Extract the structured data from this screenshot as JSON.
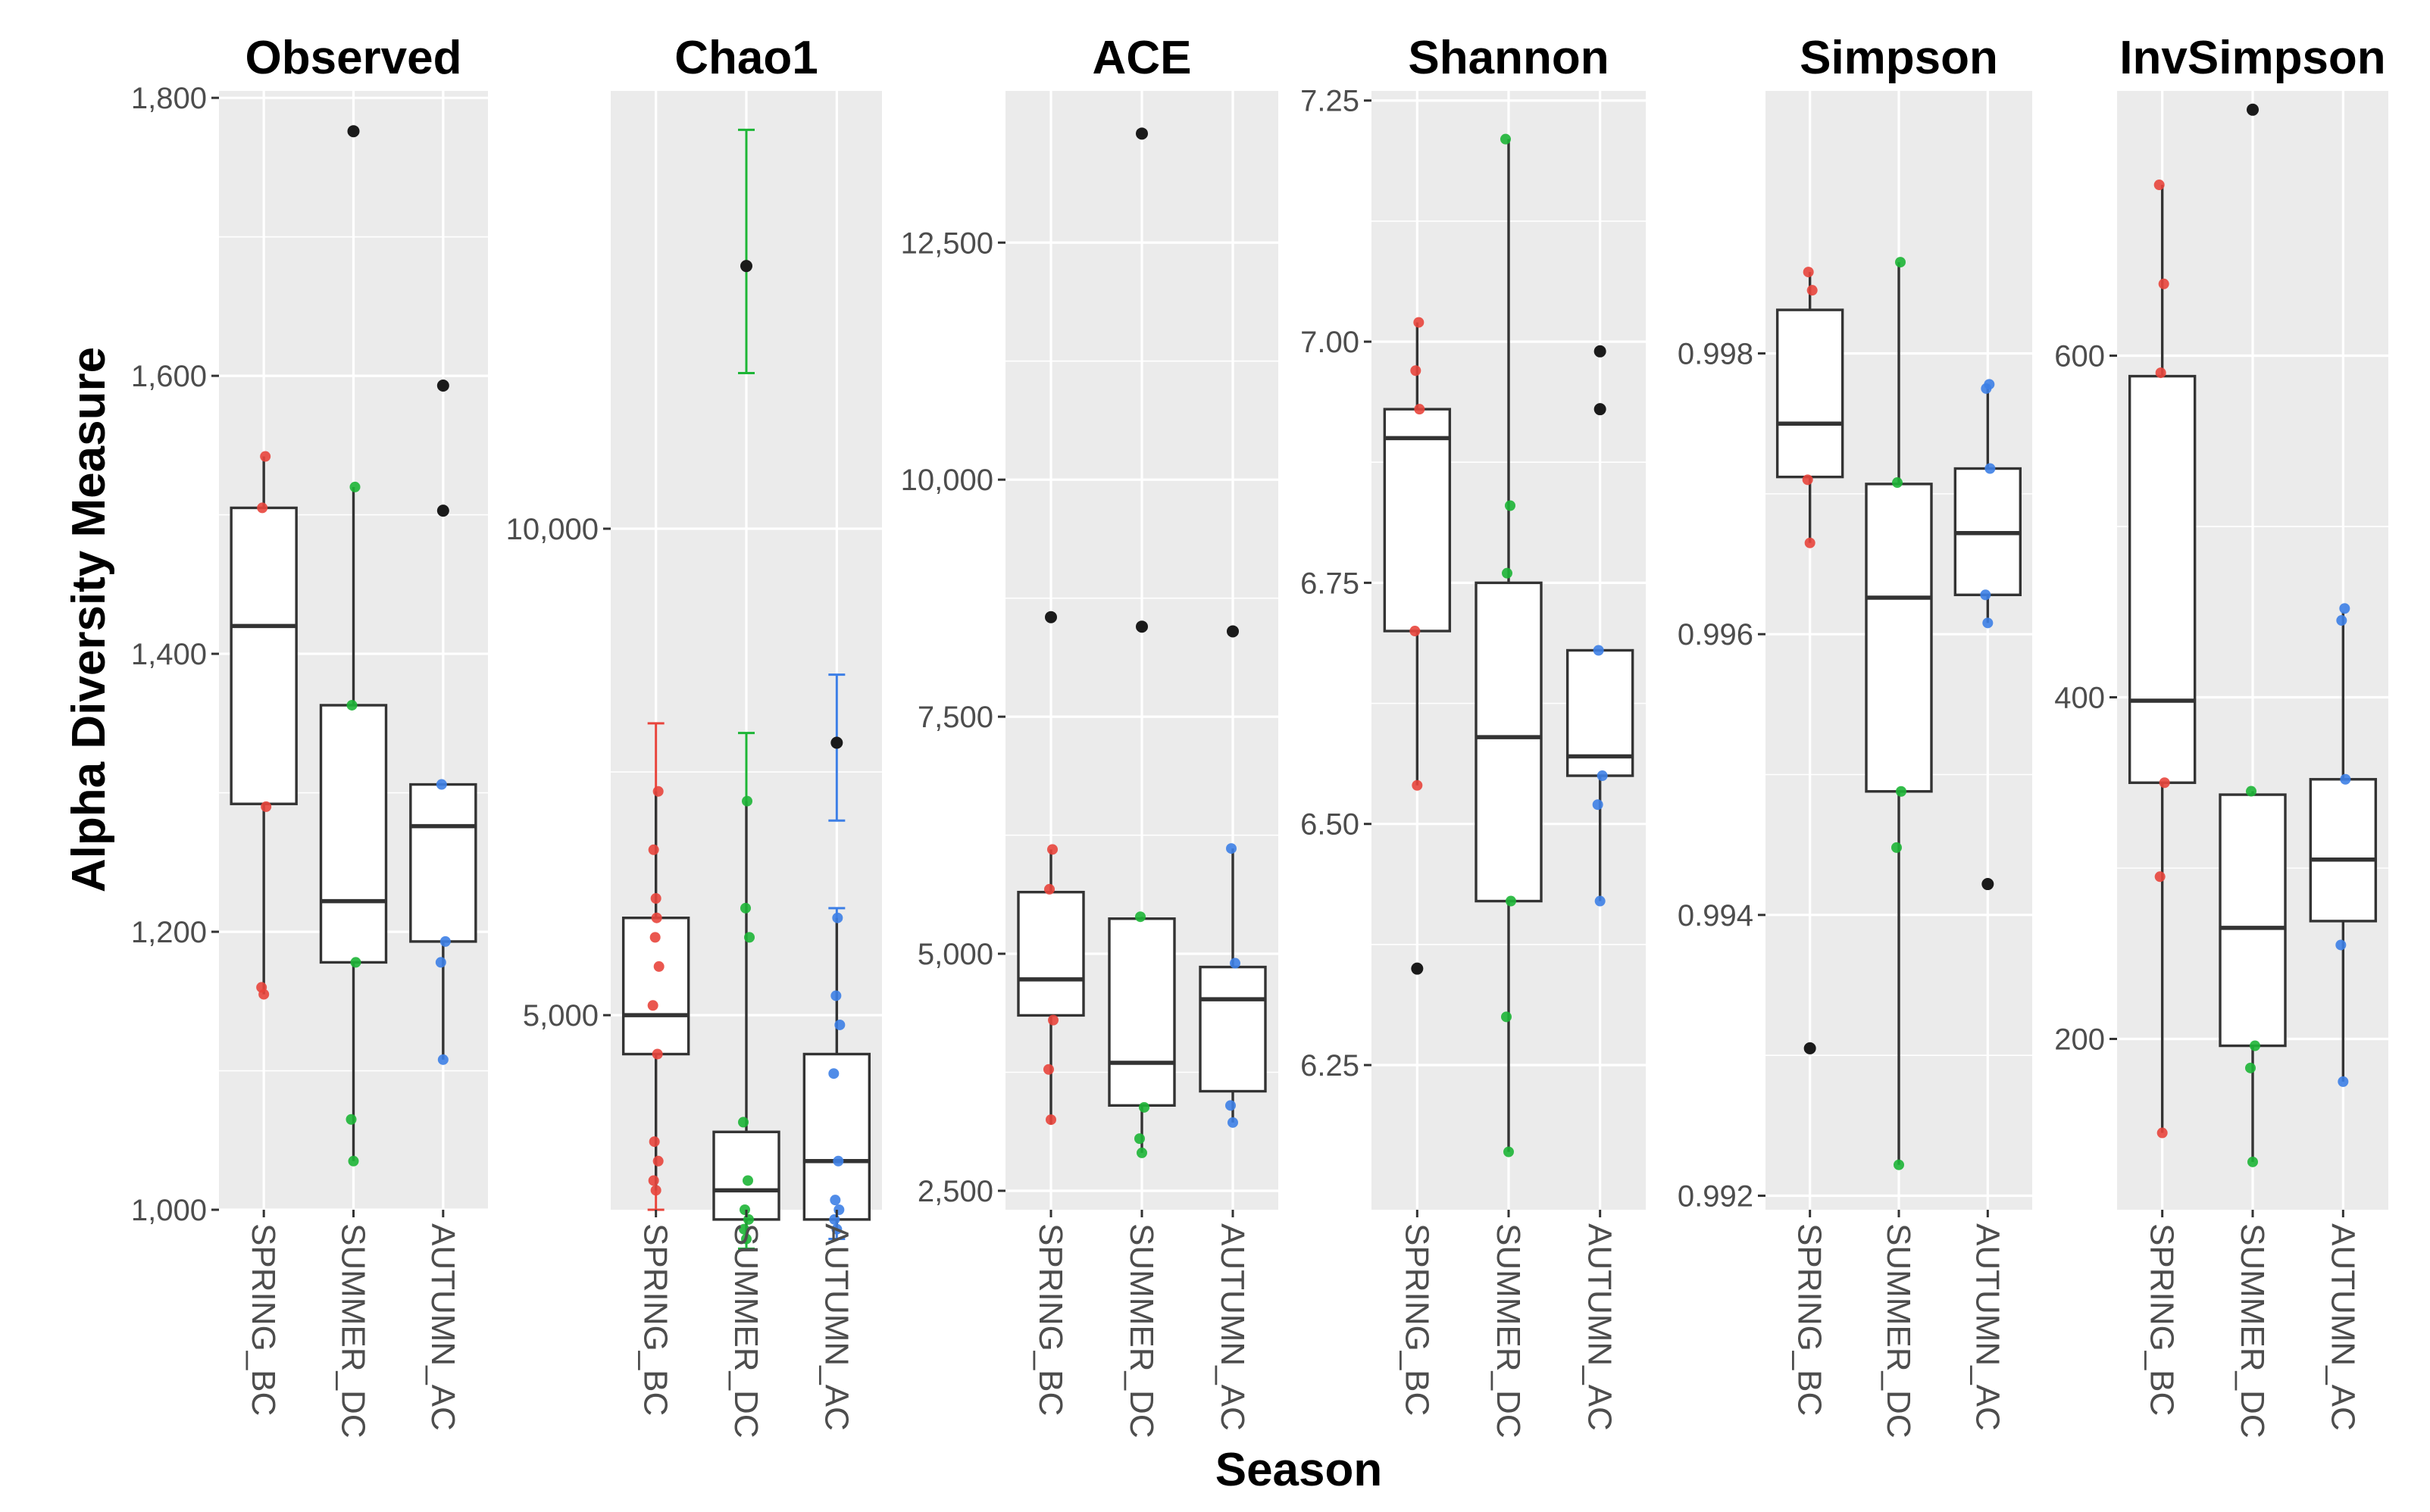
{
  "chart_data": {
    "type": "boxplot",
    "x_title": "Season",
    "y_title": "Alpha Diversity Measure",
    "categories": [
      "SPRING_BC",
      "SUMMER_DC",
      "AUTUMN_AC"
    ],
    "category_colors": [
      "#e8453c",
      "#1db536",
      "#3d7fe6"
    ],
    "outlier_color": "#1a1a1a",
    "panels": [
      {
        "title": "Observed",
        "ylim": [
          1000,
          1805
        ],
        "ticks": [
          1000,
          1200,
          1400,
          1600,
          1800
        ],
        "tick_labels": [
          "1,000",
          "1,200",
          "1,400",
          "1,600",
          "1,800"
        ],
        "boxes": [
          {
            "category": "SPRING_BC",
            "whisker_low": 1155,
            "q1": 1292,
            "median": 1420,
            "q3": 1505,
            "whisker_high": 1542,
            "outliers": [],
            "points": [
              1155,
              1160,
              1290,
              1505,
              1542
            ]
          },
          {
            "category": "SUMMER_DC",
            "whisker_low": 1035,
            "q1": 1178,
            "median": 1222,
            "q3": 1363,
            "whisker_high": 1520,
            "outliers": [
              1776
            ],
            "points": [
              1035,
              1065,
              1178,
              1363,
              1520
            ]
          },
          {
            "category": "AUTUMN_AC",
            "whisker_low": 1108,
            "q1": 1193,
            "median": 1276,
            "q3": 1306,
            "whisker_high": 1306,
            "outliers": [
              1503,
              1593
            ],
            "points": [
              1108,
              1178,
              1193,
              1306
            ]
          }
        ]
      },
      {
        "title": "Chao1",
        "ylim": [
          3000,
          14500
        ],
        "ticks": [
          5000,
          10000
        ],
        "tick_labels": [
          "5,000",
          "10,000"
        ],
        "boxes": [
          {
            "category": "SPRING_BC",
            "whisker_low": 3200,
            "q1": 4600,
            "median": 5000,
            "q3": 6000,
            "whisker_high": 7300,
            "outliers": [],
            "points": [
              3200,
              3300,
              3500,
              3700,
              4600,
              5100,
              5500,
              5800,
              6000,
              6200,
              6700,
              7300
            ],
            "error_bars": [
              [
                3000,
                8000
              ]
            ]
          },
          {
            "category": "SUMMER_DC",
            "whisker_low": 2700,
            "q1": 2900,
            "median": 3200,
            "q3": 3800,
            "whisker_high": 7200,
            "outliers": [
              12700
            ],
            "points": [
              2700,
              2800,
              2900,
              3000,
              3300,
              3900,
              5800,
              6100,
              7200
            ],
            "error_bars": [
              [
                2600,
                7900
              ],
              [
                11600,
                14100
              ]
            ]
          },
          {
            "category": "AUTUMN_AC",
            "whisker_low": 2800,
            "q1": 2900,
            "median": 3500,
            "q3": 4600,
            "whisker_high": 6000,
            "outliers": [
              7800
            ],
            "points": [
              2800,
              2900,
              3000,
              3100,
              3500,
              4400,
              4900,
              5200,
              6000
            ],
            "error_bars": [
              [
                2700,
                6100
              ],
              [
                7000,
                8500
              ]
            ]
          }
        ]
      },
      {
        "title": "ACE",
        "ylim": [
          2300,
          14100
        ],
        "ticks": [
          2500,
          5000,
          7500,
          10000,
          12500
        ],
        "tick_labels": [
          "2,500",
          "5,000",
          "7,500",
          "10,000",
          "12,500"
        ],
        "boxes": [
          {
            "category": "SPRING_BC",
            "whisker_low": 3200,
            "q1": 4350,
            "median": 4730,
            "q3": 5650,
            "whisker_high": 6100,
            "outliers": [
              8550
            ],
            "points": [
              3250,
              3780,
              4300,
              5680,
              6100
            ]
          },
          {
            "category": "SUMMER_DC",
            "whisker_low": 2900,
            "q1": 3400,
            "median": 3850,
            "q3": 5370,
            "whisker_high": 5390,
            "outliers": [
              8450,
              13650
            ],
            "points": [
              2900,
              3050,
              3380,
              5390
            ]
          },
          {
            "category": "AUTUMN_AC",
            "whisker_low": 3220,
            "q1": 3550,
            "median": 4520,
            "q3": 4860,
            "whisker_high": 6110,
            "outliers": [
              8400
            ],
            "points": [
              3220,
              3400,
              4900,
              6110
            ]
          }
        ]
      },
      {
        "title": "Shannon",
        "ylim": [
          6.1,
          7.26
        ],
        "ticks": [
          6.25,
          6.5,
          6.75,
          7.0,
          7.25
        ],
        "tick_labels": [
          "6.25",
          "6.50",
          "6.75",
          "7.00",
          "7.25"
        ],
        "boxes": [
          {
            "category": "SPRING_BC",
            "whisker_low": 6.54,
            "q1": 6.7,
            "median": 6.9,
            "q3": 6.93,
            "whisker_high": 7.02,
            "outliers": [
              6.35
            ],
            "points": [
              6.54,
              6.7,
              6.93,
              6.97,
              7.02
            ]
          },
          {
            "category": "SUMMER_DC",
            "whisker_low": 6.16,
            "q1": 6.42,
            "median": 6.59,
            "q3": 6.75,
            "whisker_high": 7.21,
            "outliers": [],
            "points": [
              6.16,
              6.3,
              6.42,
              6.76,
              6.83,
              7.21
            ]
          },
          {
            "category": "AUTUMN_AC",
            "whisker_low": 6.42,
            "q1": 6.55,
            "median": 6.57,
            "q3": 6.68,
            "whisker_high": 6.68,
            "outliers": [
              6.93,
              6.99
            ],
            "points": [
              6.42,
              6.52,
              6.55,
              6.68
            ]
          }
        ]
      },
      {
        "title": "Simpson",
        "ylim": [
          0.9919,
          0.99987
        ],
        "ticks": [
          0.992,
          0.994,
          0.996,
          0.998
        ],
        "tick_labels": [
          "0.992",
          "0.994",
          "0.996",
          "0.998"
        ],
        "boxes": [
          {
            "category": "SPRING_BC",
            "whisker_low": 0.99665,
            "q1": 0.99712,
            "median": 0.9975,
            "q3": 0.99831,
            "whisker_high": 0.99858,
            "outliers": [
              0.99305
            ],
            "points": [
              0.99665,
              0.9971,
              0.99845,
              0.99858
            ]
          },
          {
            "category": "SUMMER_DC",
            "whisker_low": 0.99222,
            "q1": 0.99488,
            "median": 0.99626,
            "q3": 0.99707,
            "whisker_high": 0.99865,
            "outliers": [],
            "points": [
              0.99222,
              0.99448,
              0.99488,
              0.99708,
              0.99865
            ]
          },
          {
            "category": "AUTUMN_AC",
            "whisker_low": 0.99608,
            "q1": 0.99628,
            "median": 0.99672,
            "q3": 0.99718,
            "whisker_high": 0.99778,
            "outliers": [
              0.99422
            ],
            "points": [
              0.99608,
              0.99628,
              0.99718,
              0.99775,
              0.99778
            ]
          }
        ]
      },
      {
        "title": "InvSimpson",
        "ylim": [
          100,
          755
        ],
        "ticks": [
          200,
          400,
          600
        ],
        "tick_labels": [
          "200",
          "400",
          "600"
        ],
        "boxes": [
          {
            "category": "SPRING_BC",
            "whisker_low": 145,
            "q1": 350,
            "median": 398,
            "q3": 588,
            "whisker_high": 700,
            "outliers": [],
            "points": [
              145,
              295,
              350,
              590,
              642,
              700
            ]
          },
          {
            "category": "SUMMER_DC",
            "whisker_low": 128,
            "q1": 196,
            "median": 265,
            "q3": 343,
            "whisker_high": 345,
            "outliers": [
              744
            ],
            "points": [
              128,
              183,
              196,
              345
            ]
          },
          {
            "category": "AUTUMN_AC",
            "whisker_low": 175,
            "q1": 269,
            "median": 305,
            "q3": 352,
            "whisker_high": 450,
            "outliers": [],
            "points": [
              175,
              255,
              352,
              445,
              452
            ]
          }
        ]
      }
    ]
  }
}
